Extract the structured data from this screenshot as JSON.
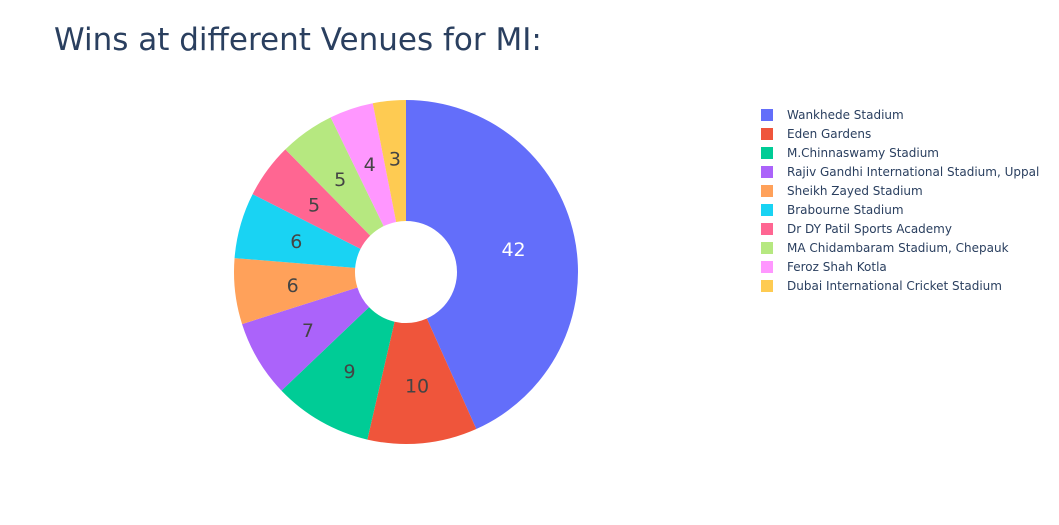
{
  "chart_data": {
    "type": "pie",
    "title": "Wins at different Venues for MI:",
    "hole": true,
    "legend_position": "right",
    "categories": [
      "Wankhede Stadium",
      "Eden Gardens",
      "M.Chinnaswamy Stadium",
      "Rajiv Gandhi International Stadium, Uppal",
      "Sheikh Zayed Stadium",
      "Brabourne Stadium",
      "Dr DY Patil Sports Academy",
      "MA Chidambaram Stadium, Chepauk",
      "Feroz Shah Kotla",
      "Dubai International Cricket Stadium"
    ],
    "values": [
      42,
      10,
      9,
      7,
      6,
      6,
      5,
      5,
      4,
      3
    ],
    "colors": [
      "#636efa",
      "#ef553b",
      "#00cc96",
      "#ab63fa",
      "#ffa15a",
      "#19d3f3",
      "#ff6692",
      "#b6e880",
      "#ff97ff",
      "#fecb52"
    ],
    "label_colors": [
      "#ffffff",
      "#444444",
      "#444444",
      "#444444",
      "#444444",
      "#444444",
      "#444444",
      "#444444",
      "#444444",
      "#444444"
    ]
  }
}
